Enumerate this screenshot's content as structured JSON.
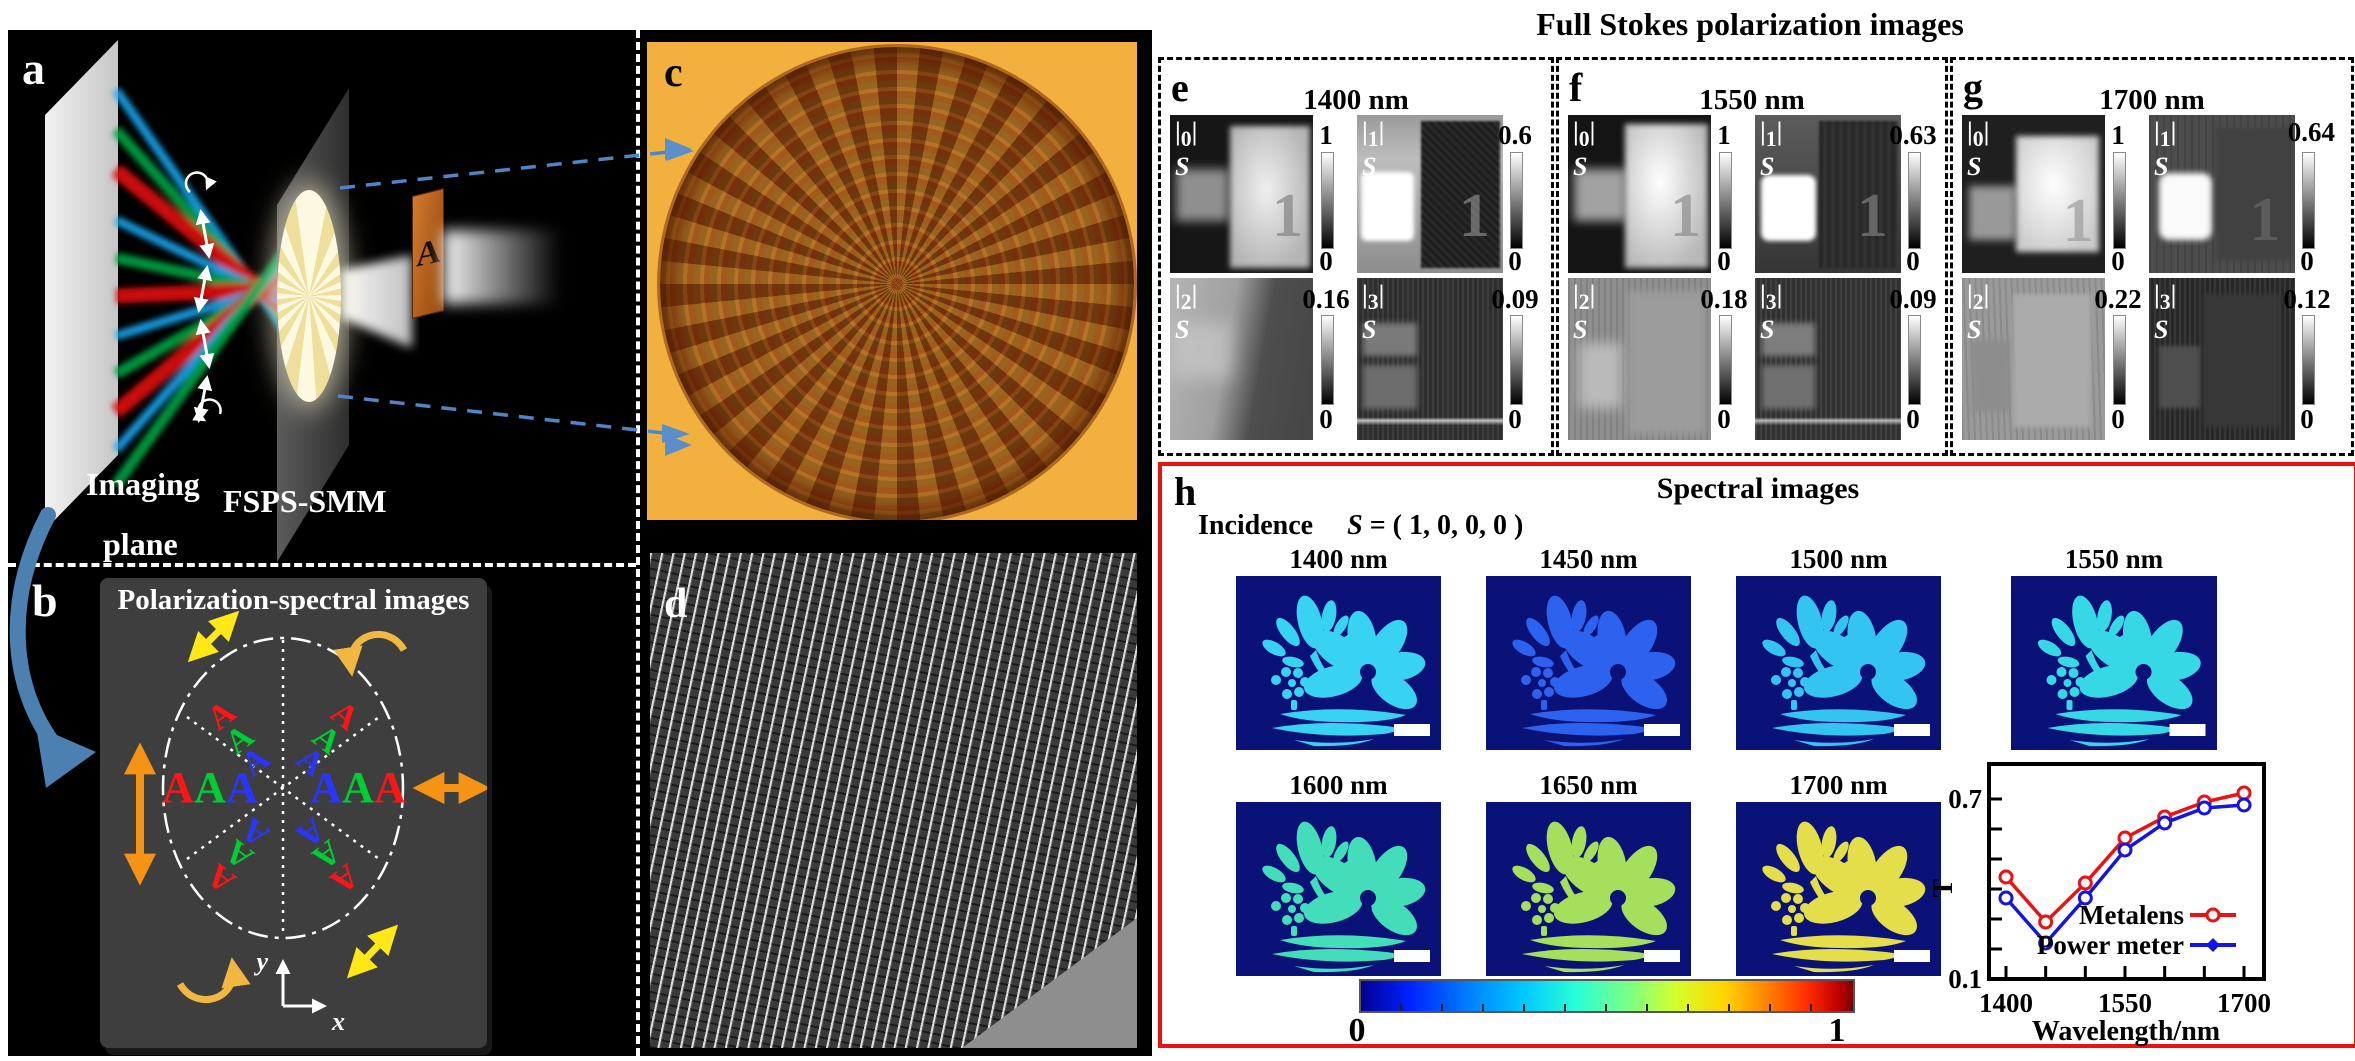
{
  "figure": {
    "panel_a": {
      "label": "a",
      "imaging_plane_label_lines": [
        "Imaging",
        "plane"
      ],
      "device_label": "FSPS-SMM",
      "target_letter": "A",
      "beam_colors": [
        "#1ba7f0",
        "#00a344",
        "#e01010"
      ]
    },
    "panel_b": {
      "label": "b",
      "title": "Polarization-spectral images",
      "letter": "A",
      "letter_colors": [
        "#ff1515",
        "#00cc33",
        "#2a35ff"
      ],
      "axis_x_label": "x",
      "axis_y_label": "y"
    },
    "panel_c": {
      "label": "c"
    },
    "panel_d": {
      "label": "d"
    },
    "stokes_section": {
      "title": "Full Stokes polarization images",
      "photo_digit": "1",
      "panels": [
        {
          "label": "e",
          "wavelength": "1400 nm",
          "images": [
            {
              "name": "|S0|",
              "max": "1",
              "min": "0"
            },
            {
              "name": "|S1|",
              "max": "0.6",
              "min": "0"
            },
            {
              "name": "|S2|",
              "max": "0.16",
              "min": "0"
            },
            {
              "name": "|S3|",
              "max": "0.09",
              "min": "0"
            }
          ]
        },
        {
          "label": "f",
          "wavelength": "1550 nm",
          "images": [
            {
              "name": "|S0|",
              "max": "1",
              "min": "0"
            },
            {
              "name": "|S1|",
              "max": "0.63",
              "min": "0"
            },
            {
              "name": "|S2|",
              "max": "0.18",
              "min": "0"
            },
            {
              "name": "|S3|",
              "max": "0.09",
              "min": "0"
            }
          ]
        },
        {
          "label": "g",
          "wavelength": "1700 nm",
          "images": [
            {
              "name": "|S0|",
              "max": "1",
              "min": "0"
            },
            {
              "name": "|S1|",
              "max": "0.64",
              "min": "0"
            },
            {
              "name": "|S2|",
              "max": "0.22",
              "min": "0"
            },
            {
              "name": "|S3|",
              "max": "0.12",
              "min": "0"
            }
          ]
        }
      ]
    },
    "spectral_section": {
      "label": "h",
      "title": "Spectral images",
      "incidence_label": "Incidence",
      "incidence_value": "S = ( 1, 0, 0, 0 )",
      "images": [
        {
          "label": "1400 nm",
          "color": "#38d2f2"
        },
        {
          "label": "1450 nm",
          "color": "#2d62ee"
        },
        {
          "label": "1500 nm",
          "color": "#33c4f2"
        },
        {
          "label": "1550 nm",
          "color": "#37d8e6"
        },
        {
          "label": "1600 nm",
          "color": "#44ddba"
        },
        {
          "label": "1650 nm",
          "color": "#a5df5c"
        },
        {
          "label": "1700 nm",
          "color": "#e4de4a"
        }
      ],
      "colorbar": {
        "min": "0",
        "max": "1"
      }
    }
  },
  "chart_data": {
    "type": "line",
    "x": [
      1400,
      1450,
      1500,
      1550,
      1600,
      1650,
      1700
    ],
    "series": [
      {
        "name": "Metalens",
        "color": "#ee1111",
        "marker": "circle",
        "values": [
          0.44,
          0.29,
          0.42,
          0.57,
          0.64,
          0.69,
          0.72
        ]
      },
      {
        "name": "Power meter",
        "color": "#1414e6",
        "marker": "diamond",
        "values": [
          0.37,
          0.22,
          0.37,
          0.53,
          0.62,
          0.67,
          0.68
        ]
      }
    ],
    "xlabel": "Wavelength/nm",
    "ylabel": "T",
    "ylim": [
      0.1,
      0.82
    ],
    "yticks": [
      0.1,
      0.2,
      0.3,
      0.4,
      0.5,
      0.6,
      0.7
    ],
    "ytick_labels_shown": [
      "0.1",
      "0.7"
    ],
    "xticks": [
      1400,
      1450,
      1500,
      1550,
      1600,
      1650,
      1700
    ],
    "xtick_labels_shown": [
      "1400",
      "1550",
      "1700"
    ],
    "legend_position": "lower right",
    "grid": false
  }
}
